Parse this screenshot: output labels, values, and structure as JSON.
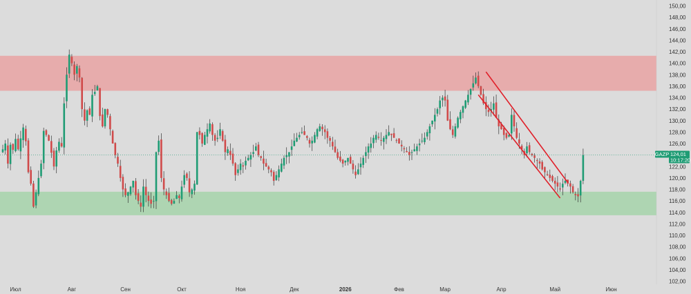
{
  "chart_data": {
    "type": "candlestick",
    "ticker": "GAZP",
    "last_price": "124,01",
    "countdown": "10:17:20",
    "y_axis": {
      "min": 102,
      "max": 150,
      "step": 2,
      "tick_labels": [
        "150,00",
        "148,00",
        "146,00",
        "144,00",
        "142,00",
        "140,00",
        "138,00",
        "136,00",
        "134,00",
        "132,00",
        "130,00",
        "128,00",
        "126,00",
        "124,00",
        "122,00",
        "120,00",
        "118,00",
        "116,00",
        "114,00",
        "112,00",
        "110,00",
        "108,00",
        "106,00",
        "104,00",
        "102,00"
      ]
    },
    "x_axis": {
      "labels": [
        {
          "text": "Июл",
          "bar": 5
        },
        {
          "text": "Авг",
          "bar": 27
        },
        {
          "text": "Сен",
          "bar": 48
        },
        {
          "text": "Окт",
          "bar": 70
        },
        {
          "text": "Ноя",
          "bar": 93
        },
        {
          "text": "Дек",
          "bar": 114
        },
        {
          "text": "2026",
          "bar": 134,
          "bold": true
        },
        {
          "text": "Фев",
          "bar": 155
        },
        {
          "text": "Мар",
          "bar": 173
        },
        {
          "text": "Апр",
          "bar": 195
        },
        {
          "text": "Май",
          "bar": 216
        },
        {
          "text": "Июн",
          "bar": 238
        }
      ],
      "total_bars": 247
    },
    "zones": [
      {
        "name": "resistance",
        "from": 135.2,
        "to": 141.3,
        "color": "#e8a6a6"
      },
      {
        "name": "support",
        "from": 113.5,
        "to": 117.6,
        "color": "#a9d4ad"
      }
    ],
    "channel": {
      "color": "#e0202a",
      "upper": [
        {
          "bar": 189,
          "price": 138.5
        },
        {
          "bar": 221,
          "price": 119.2
        }
      ],
      "lower": [
        {
          "bar": 186,
          "price": 134.5
        },
        {
          "bar": 218,
          "price": 116.5
        }
      ]
    },
    "reference_price": 124.01,
    "colors": {
      "up": "#1f9c74",
      "down": "#d04a4a",
      "wick": "#333333",
      "badge": "#1f9c74"
    },
    "closes": [
      125.0,
      126.0,
      122.5,
      125.8,
      124.9,
      126.8,
      125.0,
      126.9,
      128.8,
      126.4,
      121.0,
      119.0,
      115.0,
      117.5,
      120.0,
      122.5,
      128.2,
      127.5,
      126.5,
      124.4,
      122.0,
      124.8,
      126.3,
      125.5,
      133.0,
      138.0,
      141.5,
      140.0,
      138.0,
      139.5,
      137.5,
      132.0,
      130.0,
      131.8,
      131.0,
      134.5,
      135.0,
      136.0,
      130.8,
      129.0,
      132.0,
      131.0,
      128.5,
      126.0,
      124.0,
      122.5,
      120.0,
      118.0,
      117.0,
      117.5,
      118.5,
      119.5,
      117.0,
      116.0,
      115.0,
      118.5,
      117.0,
      116.0,
      115.5,
      116.0,
      124.5,
      126.5,
      120.0,
      118.0,
      117.0,
      116.0,
      115.5,
      116.0,
      117.0,
      116.5,
      118.5,
      120.5,
      120.0,
      117.5,
      118.0,
      119.0,
      128.0,
      127.5,
      126.0,
      127.5,
      128.5,
      129.5,
      127.5,
      126.5,
      127.0,
      128.5,
      126.5,
      124.5,
      125.0,
      124.0,
      122.5,
      120.5,
      121.5,
      122.5,
      122.0,
      123.0,
      123.5,
      124.0,
      124.5,
      125.5,
      124.0,
      123.5,
      122.5,
      122.0,
      121.5,
      121.0,
      119.5,
      120.5,
      121.5,
      122.5,
      123.5,
      124.0,
      124.5,
      125.5,
      126.5,
      127.0,
      127.5,
      128.0,
      127.5,
      127.0,
      126.0,
      126.5,
      127.5,
      128.5,
      129.0,
      128.5,
      128.0,
      127.0,
      126.5,
      125.5,
      124.5,
      123.5,
      123.0,
      122.5,
      123.0,
      123.5,
      122.5,
      121.5,
      120.5,
      121.5,
      122.5,
      123.5,
      124.5,
      125.5,
      126.0,
      127.0,
      127.5,
      127.0,
      126.5,
      127.0,
      127.5,
      128.0,
      127.5,
      127.0,
      126.5,
      126.0,
      125.5,
      125.0,
      124.5,
      124.0,
      124.5,
      125.0,
      125.5,
      126.0,
      126.5,
      127.0,
      128.0,
      129.0,
      130.0,
      131.0,
      132.0,
      133.5,
      134.0,
      133.5,
      130.0,
      128.5,
      127.5,
      129.0,
      130.5,
      131.5,
      132.5,
      133.5,
      134.5,
      135.5,
      136.5,
      137.5,
      136.0,
      134.5,
      133.0,
      132.0,
      131.5,
      132.0,
      133.0,
      130.5,
      129.0,
      128.5,
      127.5,
      127.0,
      127.5,
      131.0,
      129.0,
      127.0,
      126.0,
      125.0,
      124.0,
      125.5,
      124.5,
      124.0,
      123.5,
      123.0,
      122.5,
      121.5,
      121.0,
      120.5,
      120.0,
      119.5,
      119.0,
      118.5,
      118.0,
      119.0,
      119.5,
      119.0,
      118.5,
      117.5,
      117.0,
      116.8,
      119.5,
      124.0
    ]
  }
}
